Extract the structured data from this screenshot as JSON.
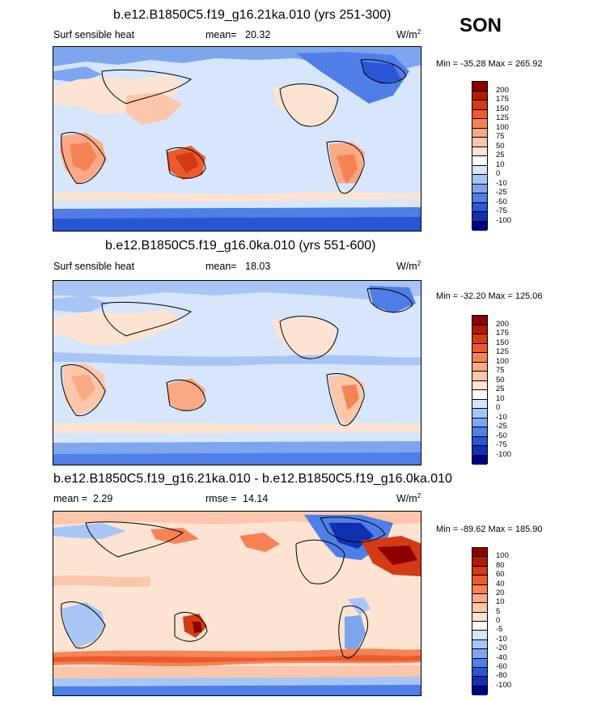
{
  "season": "SON",
  "panels": [
    {
      "title": "b.e12.B1850C5.f19_g16.21ka.010 (yrs 251-300)",
      "left_label": "Surf sensible heat",
      "mean_label": "mean=",
      "mean_value": "20.32",
      "units": "W/m",
      "units_exp": "2",
      "minmax": "Min = -35.28 Max = 265.92",
      "colorbar": {
        "levels": [
          "200",
          "175",
          "150",
          "125",
          "100",
          "75",
          "50",
          "25",
          "10",
          "0",
          "-10",
          "-25",
          "-50",
          "-75",
          "-100"
        ],
        "colors": [
          "#8b0000",
          "#b31a00",
          "#d43a13",
          "#eb5a2e",
          "#f58356",
          "#f9a983",
          "#fbc6aa",
          "#fde4d2",
          "#ffffff",
          "#d7e6fb",
          "#a8c6f5",
          "#7da6ee",
          "#4f7fe6",
          "#2a55d4",
          "#1030b0",
          "#000080"
        ]
      }
    },
    {
      "title": "b.e12.B1850C5.f19_g16.0ka.010 (yrs 551-600)",
      "left_label": "Surf sensible heat",
      "mean_label": "mean=",
      "mean_value": "18.03",
      "units": "W/m",
      "units_exp": "2",
      "minmax": "Min = -32.20 Max = 125.06",
      "colorbar": {
        "levels": [
          "200",
          "175",
          "150",
          "125",
          "100",
          "75",
          "50",
          "25",
          "10",
          "0",
          "-10",
          "-25",
          "-50",
          "-75",
          "-100"
        ],
        "colors": [
          "#8b0000",
          "#b31a00",
          "#d43a13",
          "#eb5a2e",
          "#f58356",
          "#f9a983",
          "#fbc6aa",
          "#fde4d2",
          "#ffffff",
          "#d7e6fb",
          "#a8c6f5",
          "#7da6ee",
          "#4f7fe6",
          "#2a55d4",
          "#1030b0",
          "#000080"
        ]
      }
    },
    {
      "title": "b.e12.B1850C5.f19_g16.21ka.010 - b.e12.B1850C5.f19_g16.0ka.010",
      "left_label": "mean =",
      "mean_label": "rmse =",
      "left_value": "2.29",
      "mean_value": "14.14",
      "units": "W/m",
      "units_exp": "2",
      "minmax": "Min = -89.62 Max = 185.90",
      "colorbar": {
        "levels": [
          "100",
          "80",
          "60",
          "40",
          "20",
          "10",
          "5",
          "0",
          "-5",
          "-10",
          "-20",
          "-40",
          "-60",
          "-80",
          "-100"
        ],
        "colors": [
          "#8b0000",
          "#b31a00",
          "#d43a13",
          "#eb5a2e",
          "#f58356",
          "#f9a983",
          "#fbc6aa",
          "#fde4d2",
          "#ffffff",
          "#d7e6fb",
          "#a8c6f5",
          "#7da6ee",
          "#4f7fe6",
          "#2a55d4",
          "#1030b0",
          "#000080"
        ]
      }
    }
  ]
}
